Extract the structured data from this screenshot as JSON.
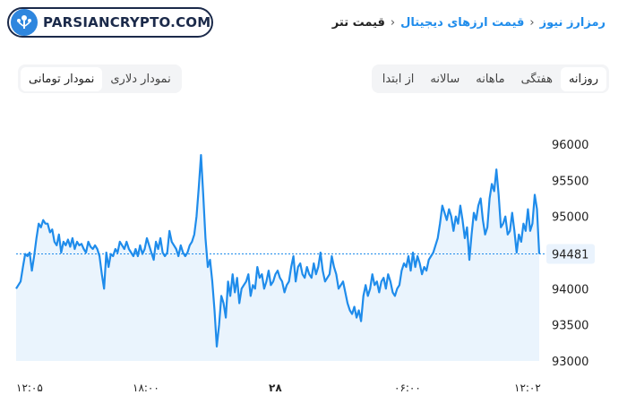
{
  "logo": {
    "text": "PARSIANCRYPTO.COM",
    "icon": "tree-network-icon"
  },
  "breadcrumb": {
    "items": [
      "رمزارز نیوز",
      "قیمت ارزهای دیجیتال",
      "قیمت تتر"
    ]
  },
  "period_tabs": [
    "روزانه",
    "هفتگی",
    "ماهانه",
    "سالانه",
    "از ابتدا"
  ],
  "active_period": "روزانه",
  "currency_toggle": [
    "نمودار دلاری",
    "نمودار تومانی"
  ],
  "colors": {
    "line": "#1f8ceb",
    "fill": "#eaf4fd",
    "accent": "#1f8ceb"
  },
  "chart_data": {
    "type": "line",
    "y_ticks": [
      "96000",
      "95500",
      "95000",
      "94500",
      "94000",
      "93500",
      "93000"
    ],
    "ylim": [
      92950,
      96100
    ],
    "x_ticks": [
      "۱۲:۰۵",
      "۱۸:۰۰",
      "۲۸",
      "۰۶:۰۰",
      "۱۲:۰۲"
    ],
    "last_value_label": "94481",
    "last_value": 94481,
    "grid": false,
    "series": [
      {
        "values": [
          94000,
          94050,
          94100,
          94300,
          94480,
          94450,
          94500,
          94250,
          94450,
          94700,
          94900,
          94850,
          94950,
          94900,
          94900,
          94780,
          94820,
          94650,
          94600,
          94750,
          94500,
          94650,
          94600,
          94680,
          94580,
          94700,
          94550,
          94650,
          94600,
          94620,
          94550,
          94500,
          94650,
          94580,
          94550,
          94600,
          94550,
          94450,
          94200,
          94000,
          94500,
          94300,
          94480,
          94450,
          94550,
          94500,
          94650,
          94600,
          94550,
          94650,
          94550,
          94500,
          94450,
          94550,
          94450,
          94600,
          94480,
          94550,
          94700,
          94600,
          94500,
          94400,
          94650,
          94550,
          94700,
          94500,
          94450,
          94500,
          94800,
          94650,
          94600,
          94550,
          94450,
          94600,
          94500,
          94450,
          94500,
          94600,
          94650,
          94750,
          95000,
          95400,
          95850,
          95300,
          94700,
          94300,
          94400,
          94100,
          93700,
          93200,
          93500,
          93900,
          93800,
          93600,
          94100,
          93900,
          94200,
          93950,
          94150,
          93800,
          94000,
          94050,
          94100,
          94200,
          93900,
          94050,
          94000,
          94300,
          94150,
          94200,
          94000,
          94100,
          94250,
          94050,
          94100,
          94200,
          94250,
          94150,
          94100,
          93950,
          94050,
          94100,
          94300,
          94450,
          94100,
          94300,
          94350,
          94200,
          94150,
          94300,
          94200,
          94150,
          94350,
          94200,
          94300,
          94500,
          94250,
          94100,
          94150,
          94200,
          94450,
          94300,
          94200,
          94000,
          94050,
          94100,
          93950,
          93800,
          93700,
          93650,
          93750,
          93600,
          93700,
          93550,
          93900,
          94050,
          93900,
          94000,
          94200,
          94050,
          94100,
          93950,
          94100,
          94150,
          94000,
          94200,
          94100,
          93950,
          93900,
          94000,
          94050,
          94250,
          94350,
          94300,
          94450,
          94250,
          94500,
          94300,
          94450,
          94350,
          94200,
          94300,
          94250,
          94400,
          94450,
          94500,
          94600,
          94700,
          94900,
          95150,
          95050,
          94950,
          95100,
          95000,
          94800,
          95000,
          94900,
          95150,
          94950,
          94700,
          94850,
          94400,
          94750,
          95050,
          94950,
          95150,
          95250,
          94950,
          94750,
          94850,
          95250,
          95450,
          95350,
          95650,
          95300,
          94850,
          94900,
          95000,
          94750,
          94800,
          95050,
          94800,
          94500,
          94750,
          94650,
          94900,
          94800,
          95100,
          94800,
          94900,
          95300,
          95100,
          94481
        ]
      }
    ]
  }
}
